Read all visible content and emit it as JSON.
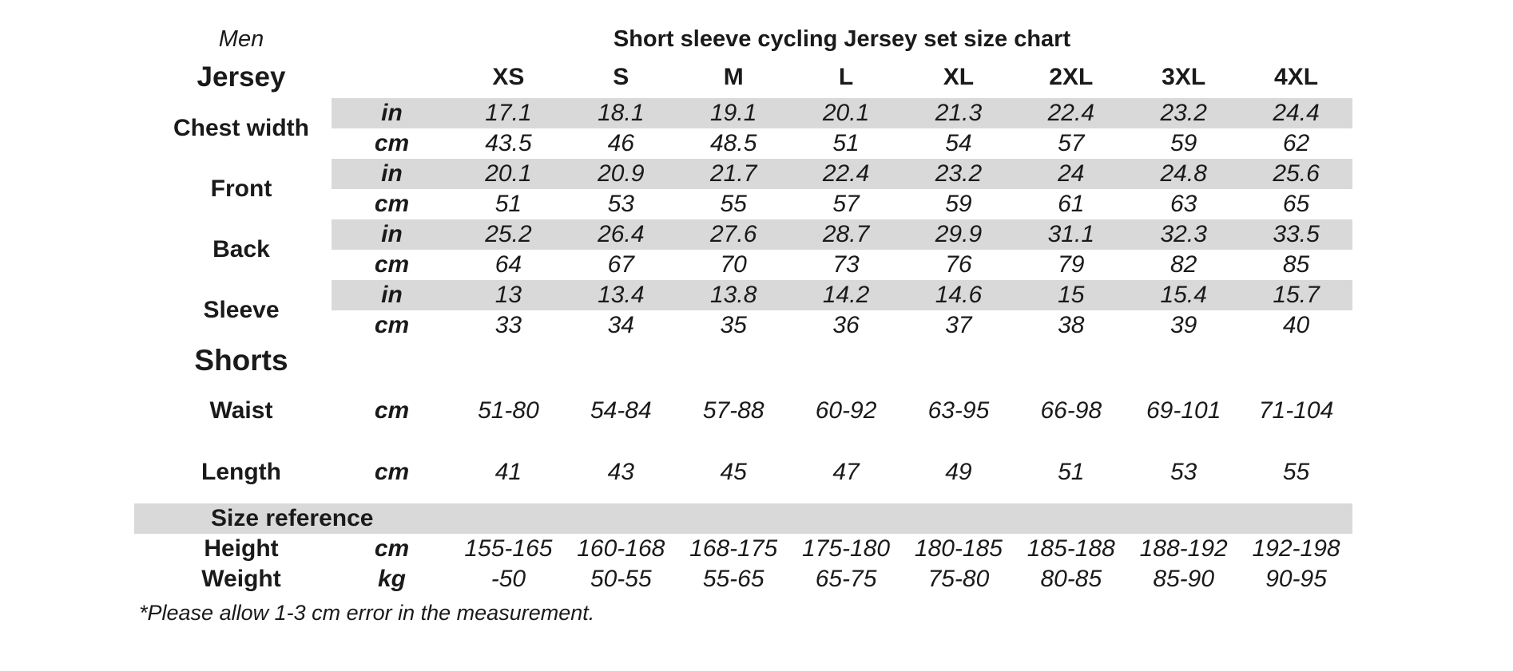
{
  "chart_data": {
    "type": "table",
    "gender_label": "Men",
    "title": "Short sleeve cycling Jersey set size chart",
    "columns": [
      "XS",
      "S",
      "M",
      "L",
      "XL",
      "2XL",
      "3XL",
      "4XL"
    ],
    "units": {
      "inch": "in",
      "cm": "cm",
      "kg": "kg"
    },
    "jersey": {
      "heading": "Jersey",
      "measurements": [
        {
          "label": "Chest width",
          "in": [
            "17.1",
            "18.1",
            "19.1",
            "20.1",
            "21.3",
            "22.4",
            "23.2",
            "24.4"
          ],
          "cm": [
            "43.5",
            "46",
            "48.5",
            "51",
            "54",
            "57",
            "59",
            "62"
          ]
        },
        {
          "label": "Front",
          "in": [
            "20.1",
            "20.9",
            "21.7",
            "22.4",
            "23.2",
            "24",
            "24.8",
            "25.6"
          ],
          "cm": [
            "51",
            "53",
            "55",
            "57",
            "59",
            "61",
            "63",
            "65"
          ]
        },
        {
          "label": "Back",
          "in": [
            "25.2",
            "26.4",
            "27.6",
            "28.7",
            "29.9",
            "31.1",
            "32.3",
            "33.5"
          ],
          "cm": [
            "64",
            "67",
            "70",
            "73",
            "76",
            "79",
            "82",
            "85"
          ]
        },
        {
          "label": "Sleeve",
          "in": [
            "13",
            "13.4",
            "13.8",
            "14.2",
            "14.6",
            "15",
            "15.4",
            "15.7"
          ],
          "cm": [
            "33",
            "34",
            "35",
            "36",
            "37",
            "38",
            "39",
            "40"
          ]
        }
      ]
    },
    "shorts": {
      "heading": "Shorts",
      "measurements": [
        {
          "label": "Waist",
          "unit": "cm",
          "values": [
            "51-80",
            "54-84",
            "57-88",
            "60-92",
            "63-95",
            "66-98",
            "69-101",
            "71-104"
          ]
        },
        {
          "label": "Length",
          "unit": "cm",
          "values": [
            "41",
            "43",
            "45",
            "47",
            "49",
            "51",
            "53",
            "55"
          ]
        }
      ]
    },
    "size_reference": {
      "heading": "Size reference",
      "measurements": [
        {
          "label": "Height",
          "unit": "cm",
          "values": [
            "155-165",
            "160-168",
            "168-175",
            "175-180",
            "180-185",
            "185-188",
            "188-192",
            "192-198"
          ]
        },
        {
          "label": "Weight",
          "unit": "kg",
          "values": [
            "-50",
            "50-55",
            "55-65",
            "65-75",
            "75-80",
            "80-85",
            "85-90",
            "90-95"
          ]
        }
      ]
    },
    "footnote": "*Please allow 1-3 cm error in the measurement."
  },
  "colors": {
    "background": "#ffffff",
    "text": "#1a1a1a",
    "band": "#d9d9d9"
  }
}
